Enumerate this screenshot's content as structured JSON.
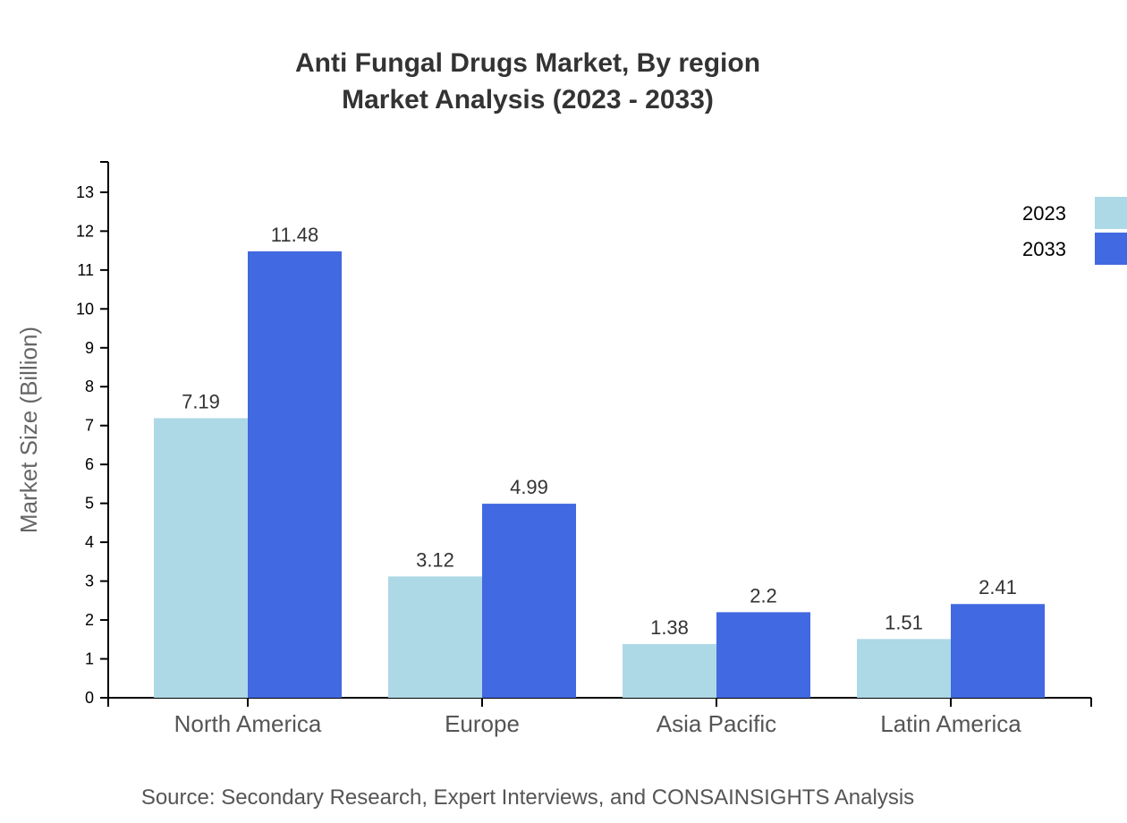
{
  "title": {
    "line1": "Anti Fungal Drugs Market, By region",
    "line2": "Market Analysis (2023 - 2033)"
  },
  "source": "Source: Secondary Research, Expert Interviews, and CONSAINSIGHTS Analysis",
  "colors": {
    "2023": "#add8e6",
    "2033": "#4169e1",
    "axis": "#000000",
    "label": "#333333"
  },
  "chart_data": {
    "type": "bar",
    "title": "Anti Fungal Drugs Market, By region\nMarket Analysis (2023 - 2033)",
    "xlabel": "",
    "ylabel": "Market Size (Billion)",
    "categories": [
      "North America",
      "Europe",
      "Asia Pacific",
      "Latin America"
    ],
    "series": [
      {
        "name": "2023",
        "color": "#add8e6",
        "values": [
          7.19,
          3.12,
          1.38,
          1.51
        ]
      },
      {
        "name": "2033",
        "color": "#4169e1",
        "values": [
          11.48,
          4.99,
          2.2,
          2.41
        ]
      }
    ],
    "yticks": [
      0,
      1,
      2,
      3,
      4,
      5,
      6,
      7,
      8,
      9,
      10,
      11,
      12,
      13
    ],
    "ylim": [
      0,
      13.78
    ],
    "grid": false,
    "legend_position": "top-right",
    "data_labels": true
  }
}
